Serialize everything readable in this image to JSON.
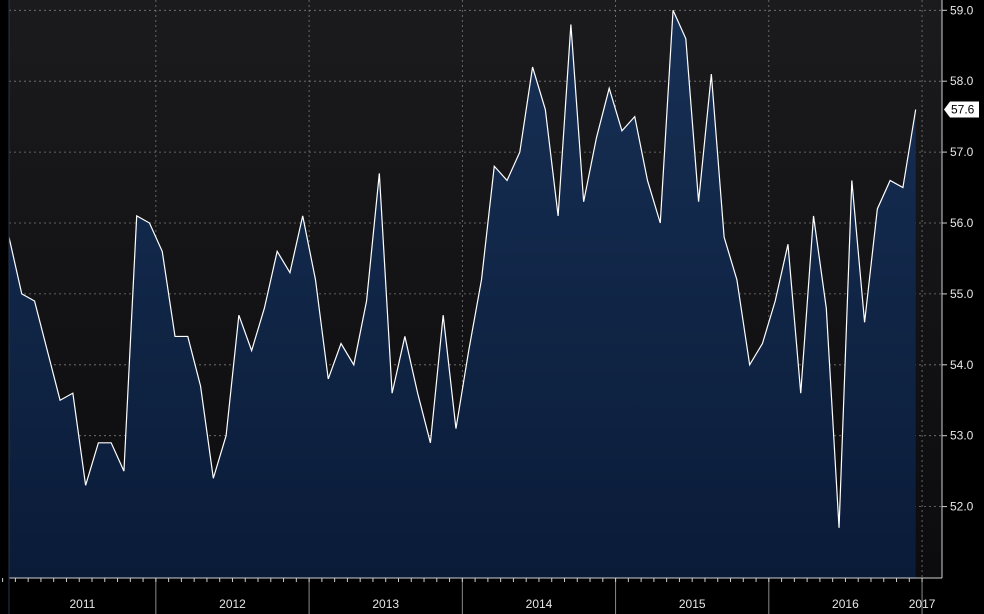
{
  "chart_data": {
    "type": "area",
    "title": "",
    "xlabel": "",
    "ylabel": "",
    "ylim": [
      51.0,
      59.0
    ],
    "grid": true,
    "y_ticks": [
      "52.0",
      "53.0",
      "54.0",
      "55.0",
      "56.0",
      "57.0",
      "58.0",
      "59.0"
    ],
    "x_ticks": [
      "2011",
      "2012",
      "2013",
      "2014",
      "2015",
      "2016",
      "2017"
    ],
    "last_value_label": "57.6",
    "start_month": "2011-01",
    "series": [
      {
        "values": [
          55.8,
          55.0,
          54.9,
          54.2,
          53.5,
          53.6,
          52.3,
          52.9,
          52.9,
          52.5,
          56.1,
          56.0,
          55.6,
          54.4,
          54.4,
          53.7,
          52.4,
          53.0,
          54.7,
          54.2,
          54.8,
          55.6,
          55.3,
          56.1,
          55.2,
          53.8,
          54.3,
          54.0,
          54.9,
          56.7,
          53.6,
          54.4,
          53.6,
          52.9,
          54.7,
          53.1,
          54.2,
          55.2,
          56.8,
          56.6,
          57.0,
          58.2,
          57.6,
          56.1,
          58.8,
          56.3,
          57.2,
          57.9,
          57.3,
          57.5,
          56.6,
          56.0,
          59.0,
          58.6,
          56.3,
          58.1,
          55.8,
          55.2,
          54.0,
          54.3,
          54.9,
          55.7,
          53.6,
          56.1,
          54.8,
          51.7,
          56.6,
          54.6,
          56.2,
          56.6,
          56.5,
          57.6
        ],
        "colors": {
          "line": "#ffffff",
          "fill_top": "#173055",
          "fill_bottom": "#0a1b38"
        }
      }
    ]
  }
}
